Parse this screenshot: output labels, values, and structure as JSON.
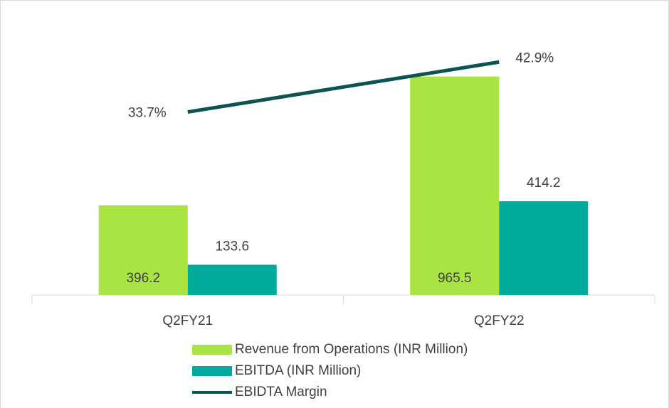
{
  "chart_data": {
    "type": "bar-line",
    "categories": [
      "Q2FY21",
      "Q2FY22"
    ],
    "series": [
      {
        "name": "Revenue from Operations (INR Million)",
        "color": "#a9e443",
        "values": [
          396.2,
          965.5
        ]
      },
      {
        "name": "EBITDA (INR Million)",
        "color": "#00ab9d",
        "values": [
          133.6,
          414.2
        ]
      },
      {
        "name": "EBIDTA Margin",
        "color": "#0c5452",
        "type": "line",
        "axis": "y2",
        "values": [
          33.7,
          42.9
        ],
        "value_labels": [
          "33.7%",
          "42.9%"
        ]
      }
    ],
    "ylim": [
      0,
      1200
    ],
    "y2lim": [
      0,
      50
    ],
    "legend": "bottom"
  }
}
